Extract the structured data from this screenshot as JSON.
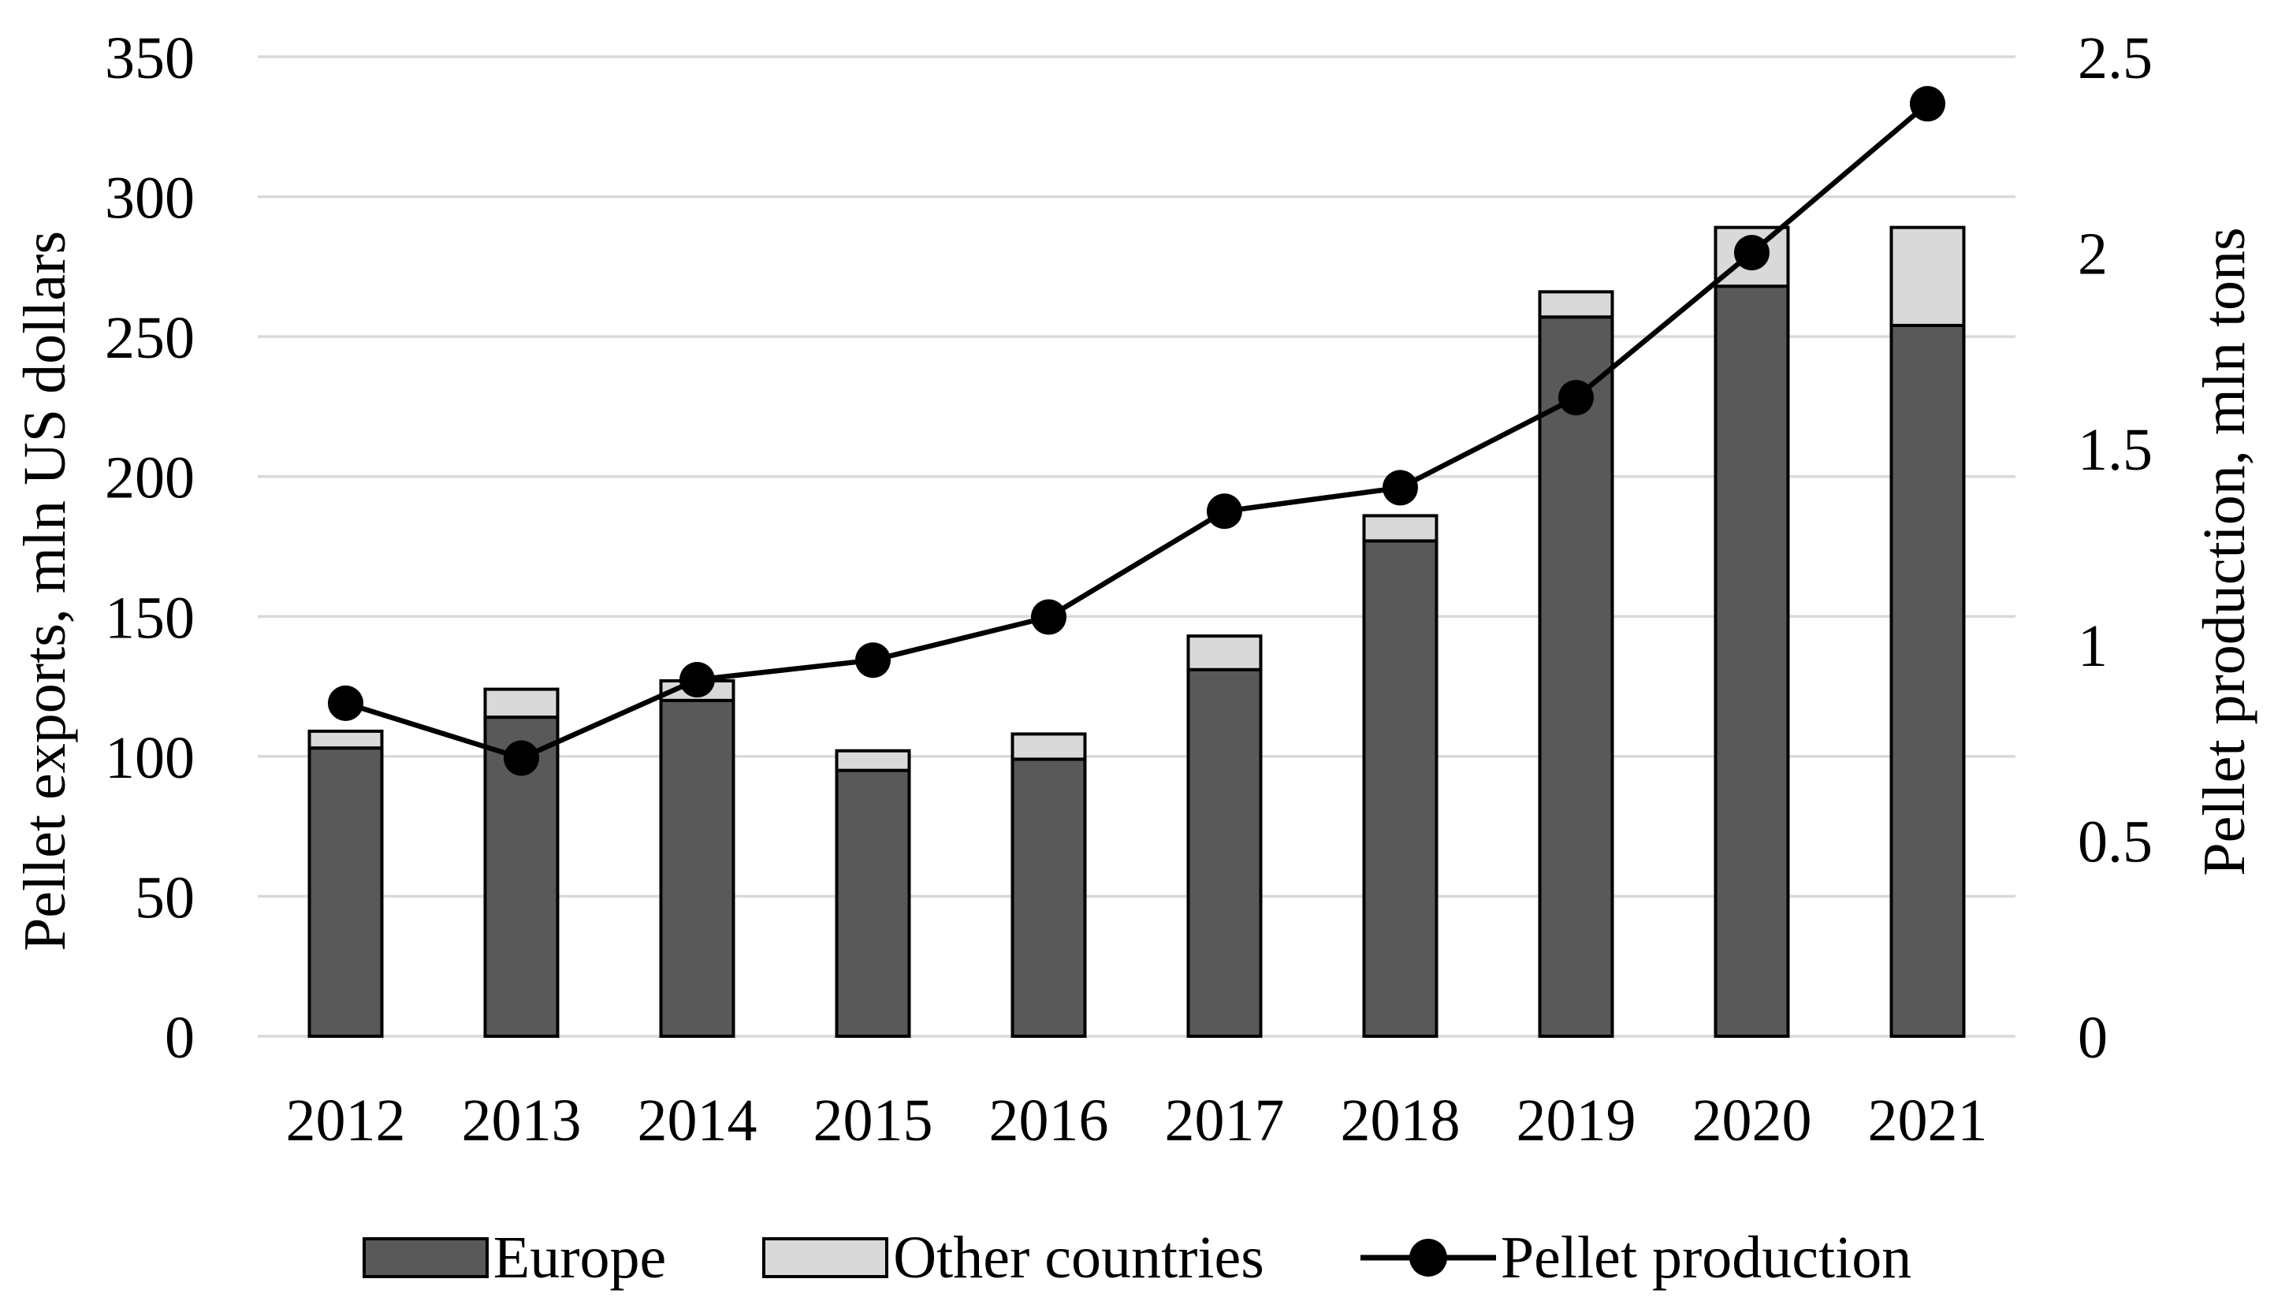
{
  "figure": {
    "background": "#ffffff"
  },
  "chart_data": {
    "type": "combo_bar_line",
    "categories": [
      "2012",
      "2013",
      "2014",
      "2015",
      "2016",
      "2017",
      "2018",
      "2019",
      "2020",
      "2021"
    ],
    "bar_series": [
      {
        "name": "Europe",
        "color": "#595959",
        "values": [
          103,
          114,
          120,
          95,
          99,
          131,
          177,
          257,
          268,
          254
        ]
      },
      {
        "name": "Other countries",
        "color": "#d9d9d9",
        "values": [
          6,
          10,
          7,
          7,
          9,
          12,
          9,
          9,
          21,
          35
        ]
      }
    ],
    "line_series": {
      "name": "Pellet production",
      "color": "#000000",
      "axis": "right",
      "values": [
        0.85,
        0.71,
        0.91,
        0.96,
        1.07,
        1.34,
        1.4,
        1.63,
        2.0,
        2.38
      ]
    },
    "left_axis": {
      "title": "Pellet exports,  mln US dollars",
      "min": 0,
      "max": 350,
      "step": 50,
      "ticks": [
        0,
        50,
        100,
        150,
        200,
        250,
        300,
        350
      ]
    },
    "right_axis": {
      "title": "Pellet production, mln tons",
      "min": 0,
      "max": 2.5,
      "step": 0.5,
      "ticks": [
        "0",
        "0.5",
        "1",
        "1.5",
        "2",
        "2.5"
      ]
    },
    "grid": {
      "show": true,
      "color": "#d9d9d9"
    },
    "bar_outline_color": "#000000",
    "legend": {
      "position": "bottom",
      "entries": [
        "Europe",
        "Other countries",
        "Pellet production"
      ]
    }
  }
}
